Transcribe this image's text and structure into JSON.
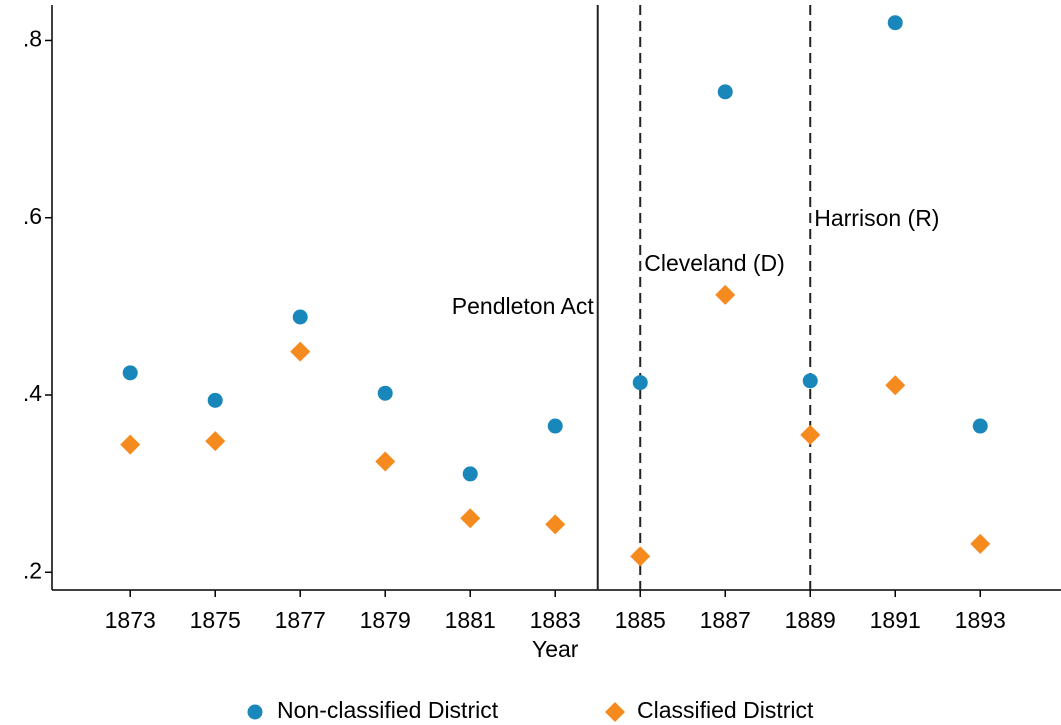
{
  "chart_data": {
    "type": "scatter",
    "x_label": "Year",
    "x": [
      1873,
      1875,
      1877,
      1879,
      1881,
      1883,
      1885,
      1887,
      1889,
      1891,
      1893
    ],
    "series": [
      {
        "name": "Non-classified District",
        "color": "#1a87bb",
        "marker": "circle",
        "values": [
          0.425,
          0.394,
          0.488,
          0.402,
          0.311,
          0.365,
          0.414,
          0.742,
          0.416,
          0.82,
          0.365
        ]
      },
      {
        "name": "Classified District",
        "color": "#f58a1f",
        "marker": "diamond",
        "values": [
          0.344,
          0.348,
          0.449,
          0.325,
          0.261,
          0.254,
          0.218,
          0.513,
          0.355,
          0.411,
          0.232
        ]
      }
    ],
    "vlines": [
      {
        "x": 1884,
        "label": "Pendleton Act",
        "style": "solid"
      },
      {
        "x": 1885,
        "label": "Cleveland (D)",
        "style": "dashed"
      },
      {
        "x": 1889,
        "label": "Harrison (R)",
        "style": "dashed"
      }
    ],
    "xlim": [
      1871.16,
      1894.9
    ],
    "ylim": [
      0.18,
      0.84
    ],
    "xticks": [
      1873,
      1875,
      1877,
      1879,
      1881,
      1883,
      1885,
      1887,
      1889,
      1891,
      1893
    ],
    "yticks": [
      {
        "value": 0.2,
        "label": ".2"
      },
      {
        "value": 0.4,
        "label": ".4"
      },
      {
        "value": 0.6,
        "label": ".6"
      },
      {
        "value": 0.8,
        "label": ".8"
      }
    ],
    "grid": false,
    "legend": "bottom"
  }
}
